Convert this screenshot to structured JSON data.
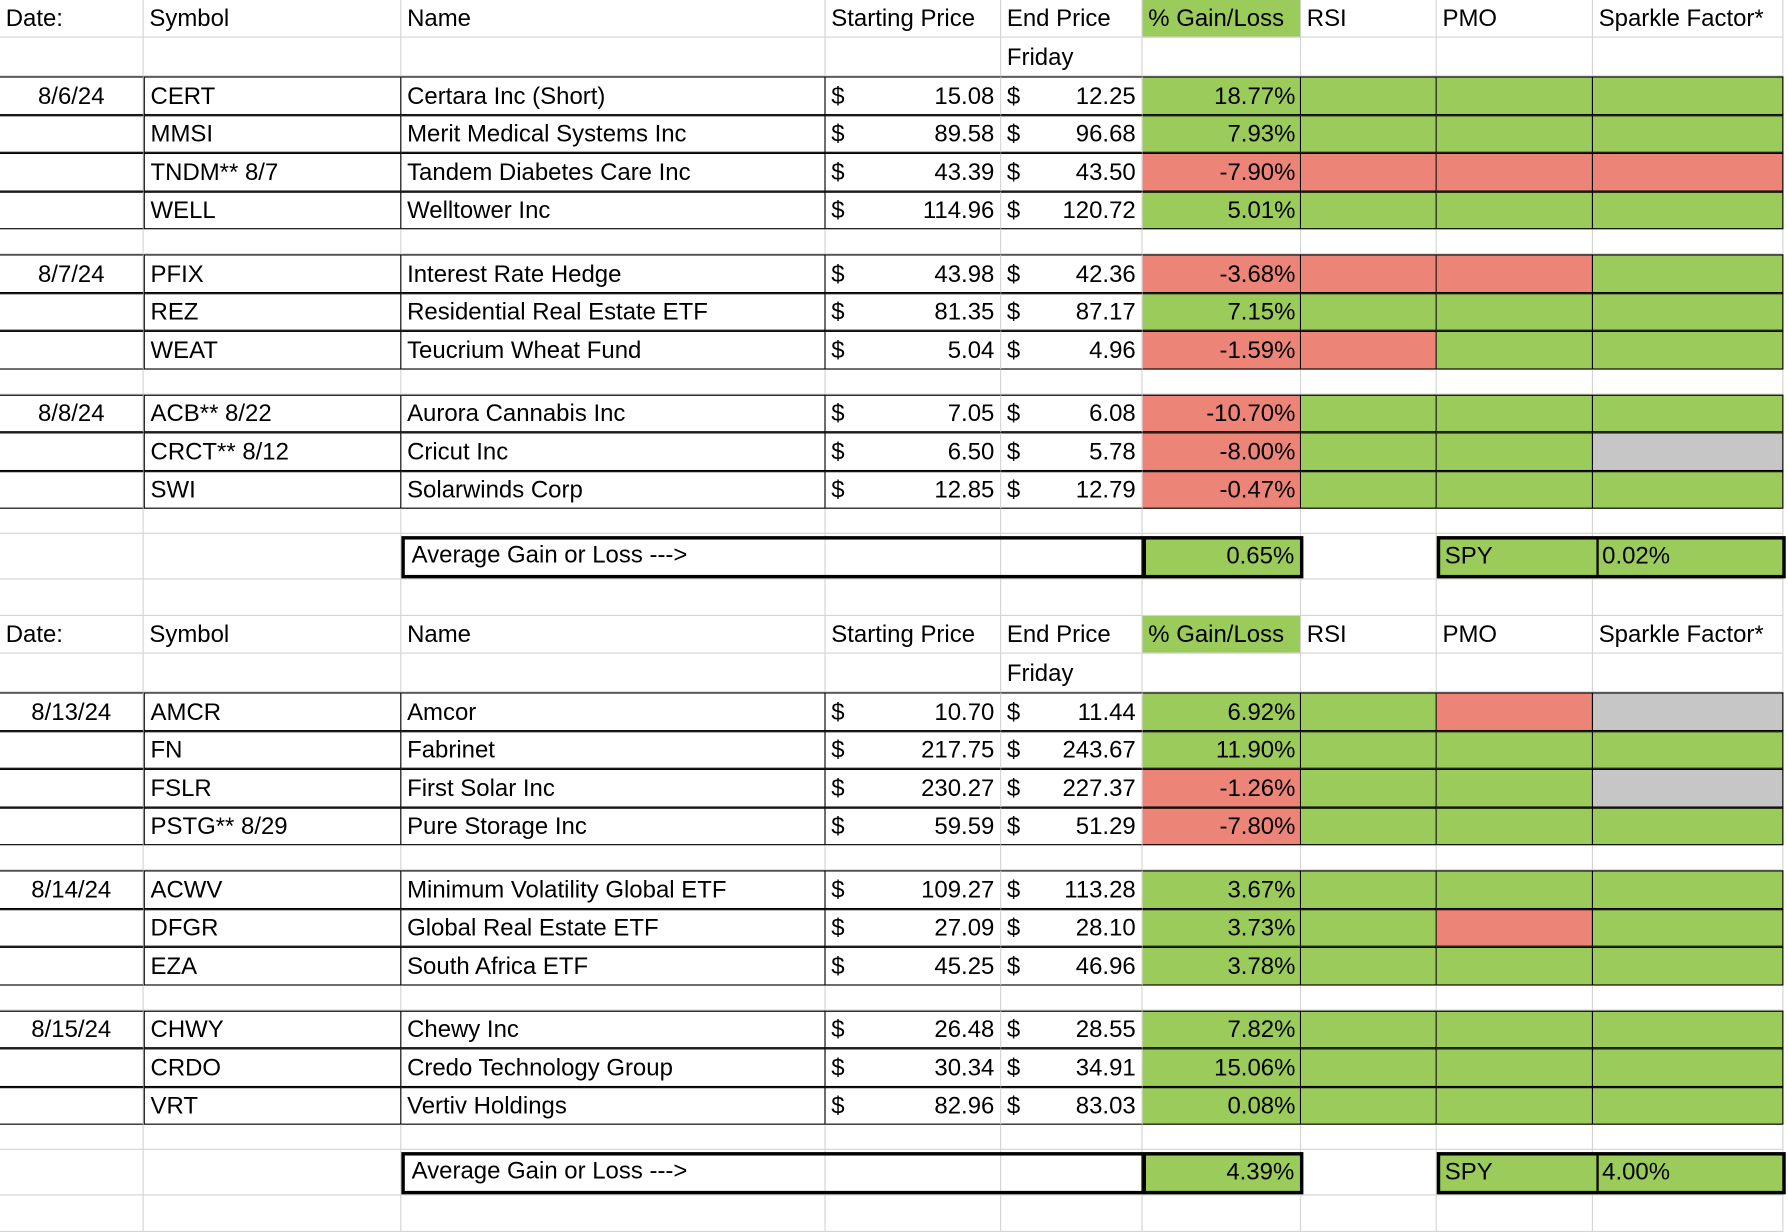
{
  "columns": {
    "date": "Date:",
    "symbol": "Symbol",
    "name": "Name",
    "start": "Starting Price",
    "end": "End Price",
    "gain": "% Gain/Loss",
    "rsi": "RSI",
    "pmo": "PMO",
    "sparkle": "Sparkle Factor*"
  },
  "end_sub": "Friday",
  "currency": "$",
  "colors": {
    "green": "#9bcb5a",
    "red": "#ec8577",
    "grey": "#c6c6c6"
  },
  "sections": [
    {
      "groups": [
        {
          "date": "8/6/24",
          "rows": [
            {
              "symbol": "CERT",
              "name": "Certara Inc (Short)",
              "start": "15.08",
              "end": "12.25",
              "gain": "18.77%",
              "g": "green",
              "rsi": "green",
              "pmo": "green",
              "spark": "green"
            },
            {
              "symbol": "MMSI",
              "name": "Merit Medical Systems Inc",
              "start": "89.58",
              "end": "96.68",
              "gain": "7.93%",
              "g": "green",
              "rsi": "green",
              "pmo": "green",
              "spark": "green"
            },
            {
              "symbol": "TNDM** 8/7",
              "name": "Tandem Diabetes Care Inc",
              "start": "43.39",
              "end": "43.50",
              "gain": "-7.90%",
              "g": "red",
              "rsi": "red",
              "pmo": "red",
              "spark": "red"
            },
            {
              "symbol": "WELL",
              "name": "Welltower Inc",
              "start": "114.96",
              "end": "120.72",
              "gain": "5.01%",
              "g": "green",
              "rsi": "green",
              "pmo": "green",
              "spark": "green"
            }
          ]
        },
        {
          "date": "8/7/24",
          "rows": [
            {
              "symbol": "PFIX",
              "name": "Interest Rate Hedge",
              "start": "43.98",
              "end": "42.36",
              "gain": "-3.68%",
              "g": "red",
              "rsi": "red",
              "pmo": "red",
              "spark": "green"
            },
            {
              "symbol": "REZ",
              "name": "Residential Real Estate ETF",
              "start": "81.35",
              "end": "87.17",
              "gain": "7.15%",
              "g": "green",
              "rsi": "green",
              "pmo": "green",
              "spark": "green"
            },
            {
              "symbol": "WEAT",
              "name": "Teucrium Wheat Fund",
              "start": "5.04",
              "end": "4.96",
              "gain": "-1.59%",
              "g": "red",
              "rsi": "red",
              "pmo": "green",
              "spark": "green"
            }
          ]
        },
        {
          "date": "8/8/24",
          "rows": [
            {
              "symbol": "ACB** 8/22",
              "name": "Aurora Cannabis Inc",
              "start": "7.05",
              "end": "6.08",
              "gain": "-10.70%",
              "g": "red",
              "rsi": "green",
              "pmo": "green",
              "spark": "green"
            },
            {
              "symbol": "CRCT** 8/12",
              "name": "Cricut Inc",
              "start": "6.50",
              "end": "5.78",
              "gain": "-8.00%",
              "g": "red",
              "rsi": "green",
              "pmo": "green",
              "spark": "grey"
            },
            {
              "symbol": "SWI",
              "name": "Solarwinds Corp",
              "start": "12.85",
              "end": "12.79",
              "gain": "-0.47%",
              "g": "red",
              "rsi": "green",
              "pmo": "green",
              "spark": "green"
            }
          ]
        }
      ],
      "avg_label": "Average Gain or Loss --->",
      "avg_value": "0.65%",
      "spy_label": "SPY",
      "spy_value": "0.02%"
    },
    {
      "groups": [
        {
          "date": "8/13/24",
          "rows": [
            {
              "symbol": "AMCR",
              "name": "Amcor",
              "start": "10.70",
              "end": "11.44",
              "gain": "6.92%",
              "g": "green",
              "rsi": "green",
              "pmo": "red",
              "spark": "grey"
            },
            {
              "symbol": "FN",
              "name": "Fabrinet",
              "start": "217.75",
              "end": "243.67",
              "gain": "11.90%",
              "g": "green",
              "rsi": "green",
              "pmo": "green",
              "spark": "green"
            },
            {
              "symbol": "FSLR",
              "name": "First Solar Inc",
              "start": "230.27",
              "end": "227.37",
              "gain": "-1.26%",
              "g": "red",
              "rsi": "green",
              "pmo": "green",
              "spark": "grey"
            },
            {
              "symbol": "PSTG** 8/29",
              "name": "Pure Storage Inc",
              "start": "59.59",
              "end": "51.29",
              "gain": "-7.80%",
              "g": "red",
              "rsi": "green",
              "pmo": "green",
              "spark": "green"
            }
          ]
        },
        {
          "date": "8/14/24",
          "rows": [
            {
              "symbol": "ACWV",
              "name": "Minimum Volatility Global ETF",
              "start": "109.27",
              "end": "113.28",
              "gain": "3.67%",
              "g": "green",
              "rsi": "green",
              "pmo": "green",
              "spark": "green"
            },
            {
              "symbol": "DFGR",
              "name": "Global Real Estate ETF",
              "start": "27.09",
              "end": "28.10",
              "gain": "3.73%",
              "g": "green",
              "rsi": "green",
              "pmo": "red",
              "spark": "green"
            },
            {
              "symbol": "EZA",
              "name": "South Africa ETF",
              "start": "45.25",
              "end": "46.96",
              "gain": "3.78%",
              "g": "green",
              "rsi": "green",
              "pmo": "green",
              "spark": "green"
            }
          ]
        },
        {
          "date": "8/15/24",
          "rows": [
            {
              "symbol": "CHWY",
              "name": "Chewy Inc",
              "start": "26.48",
              "end": "28.55",
              "gain": "7.82%",
              "g": "green",
              "rsi": "green",
              "pmo": "green",
              "spark": "green"
            },
            {
              "symbol": "CRDO",
              "name": "Credo Technology Group",
              "start": "30.34",
              "end": "34.91",
              "gain": "15.06%",
              "g": "green",
              "rsi": "green",
              "pmo": "green",
              "spark": "green"
            },
            {
              "symbol": "VRT",
              "name": "Vertiv Holdings",
              "start": "82.96",
              "end": "83.03",
              "gain": "0.08%",
              "g": "green",
              "rsi": "green",
              "pmo": "green",
              "spark": "green"
            }
          ]
        }
      ],
      "avg_label": "Average Gain or Loss --->",
      "avg_value": "4.39%",
      "spy_label": "SPY",
      "spy_value": "4.00%"
    }
  ]
}
